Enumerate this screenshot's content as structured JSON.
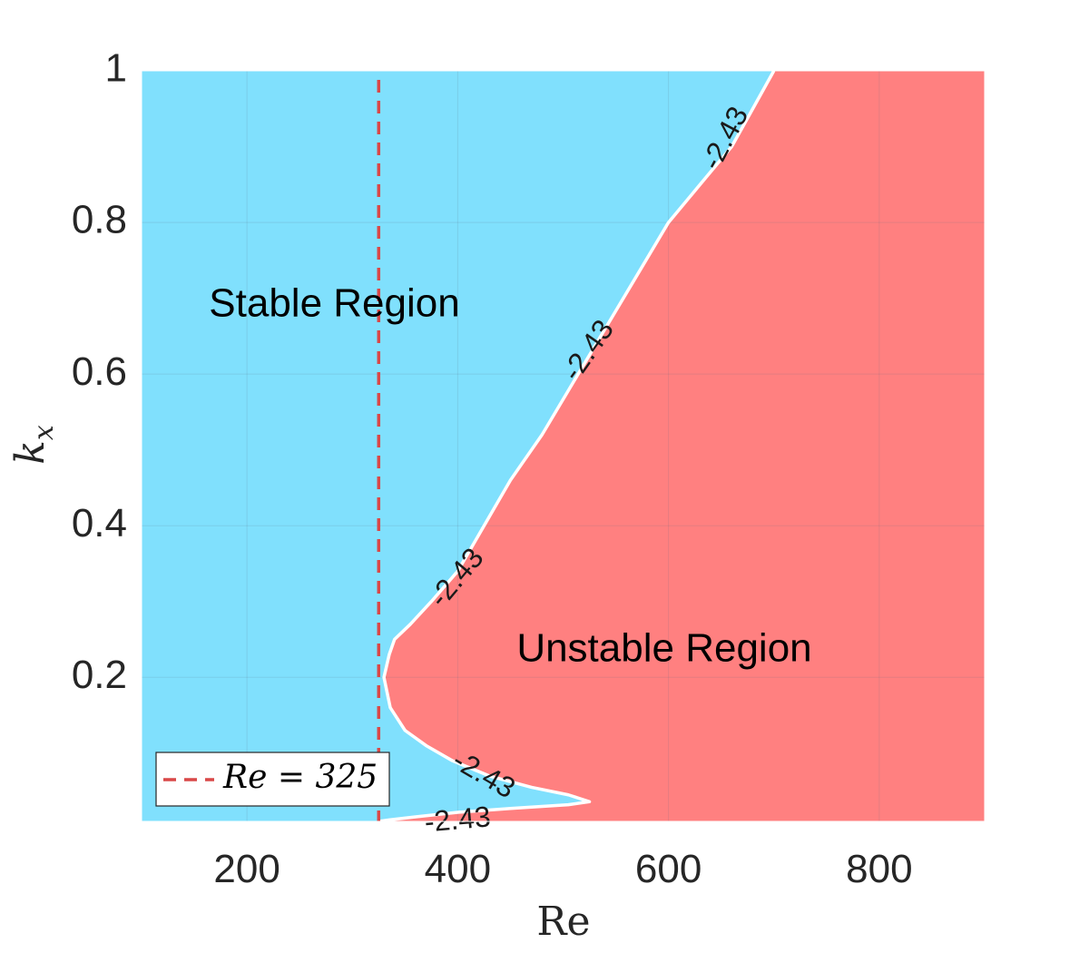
{
  "chart_data": {
    "type": "contour",
    "xlabel": "Re",
    "ylabel": "k_x",
    "xlim": [
      100,
      900
    ],
    "ylim": [
      0.01,
      1
    ],
    "x_ticks": [
      200,
      400,
      600,
      800
    ],
    "y_ticks": [
      0.2,
      0.4,
      0.6,
      0.8,
      1
    ],
    "y_tick_labels": [
      "0.2",
      "0.4",
      "0.6",
      "0.8",
      "1"
    ],
    "grid": true,
    "colors": {
      "stable": "#80e0fd",
      "unstable": "#ff8080",
      "contour": "#ffffff",
      "reference_line": "#d94848"
    },
    "contour_level": -2.43,
    "contour_label": "-2.43",
    "boundary": {
      "upper": [
        {
          "x": 700,
          "y": 1.0
        },
        {
          "x": 680,
          "y": 0.95
        },
        {
          "x": 660,
          "y": 0.9
        },
        {
          "x": 630,
          "y": 0.85
        },
        {
          "x": 600,
          "y": 0.8
        },
        {
          "x": 570,
          "y": 0.73
        },
        {
          "x": 540,
          "y": 0.66
        },
        {
          "x": 510,
          "y": 0.59
        },
        {
          "x": 480,
          "y": 0.52
        },
        {
          "x": 450,
          "y": 0.46
        },
        {
          "x": 425,
          "y": 0.4
        },
        {
          "x": 400,
          "y": 0.34
        },
        {
          "x": 375,
          "y": 0.3
        },
        {
          "x": 355,
          "y": 0.27
        },
        {
          "x": 340,
          "y": 0.25
        },
        {
          "x": 335,
          "y": 0.23
        },
        {
          "x": 330,
          "y": 0.2
        }
      ],
      "lower": [
        {
          "x": 330,
          "y": 0.2
        },
        {
          "x": 336,
          "y": 0.16
        },
        {
          "x": 350,
          "y": 0.13
        },
        {
          "x": 370,
          "y": 0.11
        },
        {
          "x": 395,
          "y": 0.09
        },
        {
          "x": 430,
          "y": 0.07
        },
        {
          "x": 470,
          "y": 0.055
        },
        {
          "x": 505,
          "y": 0.045
        },
        {
          "x": 525,
          "y": 0.036
        },
        {
          "x": 505,
          "y": 0.032
        },
        {
          "x": 450,
          "y": 0.027
        },
        {
          "x": 400,
          "y": 0.022
        },
        {
          "x": 360,
          "y": 0.016
        },
        {
          "x": 335,
          "y": 0.012
        },
        {
          "x": 325,
          "y": 0.01
        }
      ]
    },
    "contour_label_positions": [
      {
        "x": 655,
        "y": 0.91,
        "angle": -62
      },
      {
        "x": 525,
        "y": 0.63,
        "angle": -55
      },
      {
        "x": 400,
        "y": 0.33,
        "angle": -50
      },
      {
        "x": 424,
        "y": 0.07,
        "angle": 30
      },
      {
        "x": 400,
        "y": 0.01,
        "angle": -5
      }
    ],
    "reference_line": {
      "x": 325,
      "label": "Re = 325"
    },
    "annotations": [
      {
        "text": "Stable Region",
        "x": 283,
        "y": 0.69
      },
      {
        "text": "Unstable Region",
        "x": 596,
        "y": 0.235
      }
    ],
    "legend": {
      "position": "bottom-left",
      "entries": [
        "Re = 325"
      ]
    }
  }
}
